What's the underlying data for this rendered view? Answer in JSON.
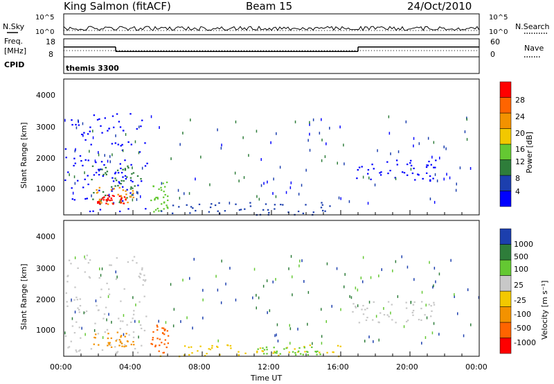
{
  "header": {
    "station": "King Salmon (fitACF)",
    "beam": "Beam 15",
    "date": "24/Oct/2010"
  },
  "top_panel": {
    "left_label": "N.Sky",
    "right_label": "N.Search",
    "left_ticks": [
      "10^5",
      "10^0"
    ],
    "right_ticks": [
      "10^5",
      "10^0"
    ]
  },
  "freq_panel": {
    "left_label_1": "Freq.",
    "left_label_2": "[MHz]",
    "right_label": "Nave",
    "left_ticks": [
      "18",
      "8"
    ],
    "right_ticks": [
      "60",
      "0"
    ]
  },
  "cpid": {
    "label": "CPID",
    "value": "themis 3300"
  },
  "power_panel": {
    "ylabel": "Slant Range [km]",
    "yticks": [
      "4000",
      "3000",
      "2000",
      "1000"
    ],
    "colorbar_label": "Power [dB]",
    "colorbar_ticks": [
      "28",
      "24",
      "20",
      "16",
      "12",
      "8",
      "4"
    ],
    "colors": [
      "#0000ff",
      "#1c3fae",
      "#2e7d3a",
      "#64c832",
      "#f2c800",
      "#f39200",
      "#ff6400",
      "#ff0000"
    ]
  },
  "velocity_panel": {
    "ylabel": "Slant Range [km]",
    "yticks": [
      "4000",
      "3000",
      "2000",
      "1000"
    ],
    "colorbar_label": "Velocity [m s⁻¹]",
    "colorbar_ticks": [
      "1000",
      "500",
      "100",
      "25",
      "-25",
      "-100",
      "-500",
      "-1000"
    ],
    "colors": [
      "#1c3fae",
      "#2e7d3a",
      "#64c832",
      "#c8c8c8",
      "#f2c800",
      "#f39200",
      "#ff6400",
      "#ff0000"
    ]
  },
  "xaxis": {
    "label": "Time UT",
    "ticks": [
      "00:00",
      "04:00",
      "08:00",
      "12:00",
      "16:00",
      "20:00",
      "00:00"
    ]
  },
  "chart_data": {
    "type": "heatmap",
    "x_unit": "hours UT",
    "xlim": [
      0,
      24
    ],
    "ylim_km": [
      180,
      4600
    ],
    "power_regions": [
      {
        "t0": 0.0,
        "t1": 4.8,
        "r0": 300,
        "r1": 3500,
        "level": 0
      },
      {
        "t0": 1.5,
        "t1": 4.5,
        "r0": 500,
        "r1": 1800,
        "level": 2
      },
      {
        "t0": 1.8,
        "t1": 4.0,
        "r0": 550,
        "r1": 1100,
        "level": 5
      },
      {
        "t0": 1.9,
        "t1": 3.6,
        "r0": 550,
        "r1": 850,
        "level": 7
      },
      {
        "t0": 5.0,
        "t1": 6.0,
        "r0": 300,
        "r1": 1300,
        "level": 3
      },
      {
        "t0": 5.5,
        "t1": 16.0,
        "r0": 200,
        "r1": 600,
        "level": 1
      },
      {
        "t0": 16.5,
        "t1": 21.5,
        "r0": 1300,
        "r1": 2000,
        "level": 0
      }
    ],
    "velocity_regions": [
      {
        "t0": 0.0,
        "t1": 4.8,
        "r0": 300,
        "r1": 3500,
        "level": 3
      },
      {
        "t0": 1.5,
        "t1": 4.0,
        "r0": 500,
        "r1": 1000,
        "level": 5
      },
      {
        "t0": 5.0,
        "t1": 6.0,
        "r0": 300,
        "r1": 1300,
        "level": 6
      },
      {
        "t0": 5.5,
        "t1": 16.0,
        "r0": 200,
        "r1": 600,
        "level": 4
      },
      {
        "t0": 11.0,
        "t1": 15.0,
        "r0": 250,
        "r1": 500,
        "level": 2
      },
      {
        "t0": 16.5,
        "t1": 21.5,
        "r0": 1300,
        "r1": 2000,
        "level": 3
      }
    ],
    "freq_mhz_segments": [
      {
        "t0": 0.0,
        "t1": 3.0,
        "value": 13.5
      },
      {
        "t0": 3.0,
        "t1": 17.0,
        "value": 11.0
      },
      {
        "t0": 17.0,
        "t1": 24.0,
        "value": 13.5
      }
    ]
  }
}
